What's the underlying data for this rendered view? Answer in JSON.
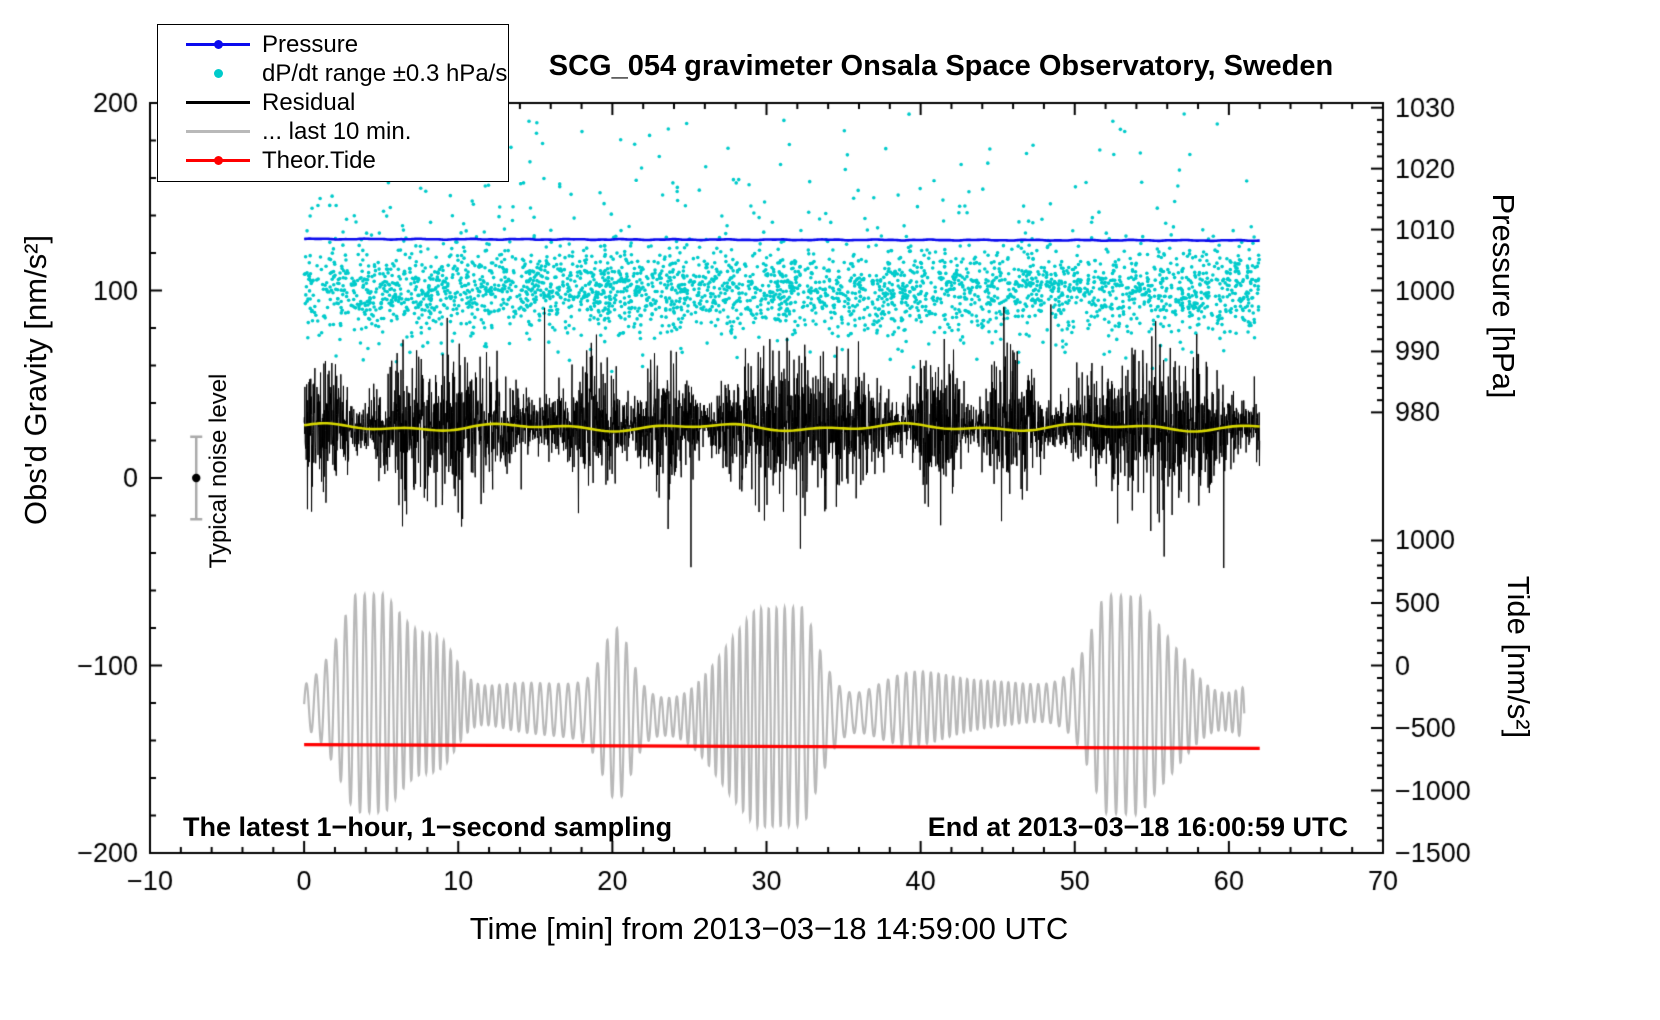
{
  "chart_data": {
    "type": "line",
    "title": "SCG_054 gravimeter Onsala Space Observatory, Sweden",
    "xlabel": "Time [min] from 2013−03−18 14:59:00 UTC",
    "annotations": {
      "bottom_left": "The latest 1−hour, 1−second sampling",
      "bottom_right": "End at 2013−03−18 16:00:59 UTC"
    },
    "noise_marker": {
      "label": "Typical noise level",
      "x": -7,
      "y": 0,
      "error": 22
    },
    "axes": {
      "x": {
        "min": -10,
        "max": 70,
        "minor_step": 2,
        "tick_values": [
          -10,
          0,
          10,
          20,
          30,
          40,
          50,
          60,
          70
        ],
        "tick_labels": [
          "−10",
          "0",
          "10",
          "20",
          "30",
          "40",
          "50",
          "60",
          "70"
        ]
      },
      "gravity": {
        "label": "Obs'd Gravity [nm/s²]",
        "min": -200,
        "max": 200,
        "minor_step": 20,
        "tick_values": [
          200,
          100,
          0,
          -100,
          -200
        ],
        "tick_labels": [
          "200",
          "100",
          "0",
          "−100",
          "−200"
        ]
      },
      "pressure": {
        "label": "Pressure [hPa]",
        "ref_hpa": 1000,
        "gravity_offset": 100,
        "gravity_per_hpa": 3.25,
        "minor_step": 2,
        "minor_range": [
          980,
          1030
        ],
        "tick_values": [
          1030,
          1020,
          1010,
          1000,
          990,
          980
        ],
        "tick_labels": [
          "1030",
          "1020",
          "1010",
          "1000",
          "990",
          "980"
        ]
      },
      "tide": {
        "label": "Tide [nm/s²]",
        "gravity_offset": -100,
        "gravity_per_unit": 0.0666667,
        "minor_step": 100,
        "minor_range": [
          -1500,
          1000
        ],
        "tick_values": [
          1000,
          500,
          0,
          -500,
          -1000,
          -1500
        ],
        "tick_labels": [
          "1000",
          "500",
          "0",
          "−500",
          "−1000",
          "−1500"
        ]
      }
    },
    "series": {
      "pressure": {
        "color": "#0a0aee",
        "x_start": 0,
        "x_end": 62,
        "start_hpa": 1008.45,
        "end_hpa": 1008.2,
        "noise_hpa": 0.05
      },
      "dpdt_scatter": {
        "color": "#00cbcb",
        "n_points": 3200,
        "x_start": 0,
        "x_end": 62,
        "center": 100,
        "spread": 11,
        "tail_spread": 26,
        "y_min": 56,
        "y_max": 196
      },
      "residual": {
        "color": "#000000",
        "n_points": 3720,
        "x_start": 0,
        "x_end": 62,
        "mean": 28,
        "std": 16,
        "min_clip": -48,
        "max_clip": 93
      },
      "residual_smooth": {
        "color": "#d8d800",
        "mean": 27,
        "wiggle": 1.3
      },
      "last10min": {
        "color": "#b9b9b9",
        "x_start": 0,
        "x_end": 61,
        "center": -124,
        "amp_min": 10,
        "amp_max": 58,
        "period_min": 0.54
      },
      "theor_tide": {
        "color": "#ff0000",
        "x_start": 0,
        "x_end": 62,
        "start": -142.2,
        "end": -144.2,
        "tide_value_nms2": -650
      }
    },
    "legend": [
      {
        "label": "Pressure",
        "color": "#0a0aee",
        "marker": "line-dot"
      },
      {
        "label": "dP/dt range ±0.3 hPa/s",
        "color": "#00cbcb",
        "marker": "dot"
      },
      {
        "label": "Residual",
        "color": "#000000",
        "marker": "line"
      },
      {
        "label": "... last 10 min.",
        "color": "#b9b9b9",
        "marker": "line"
      },
      {
        "label": "Theor.Tide",
        "color": "#ff0000",
        "marker": "line-dot"
      }
    ]
  }
}
